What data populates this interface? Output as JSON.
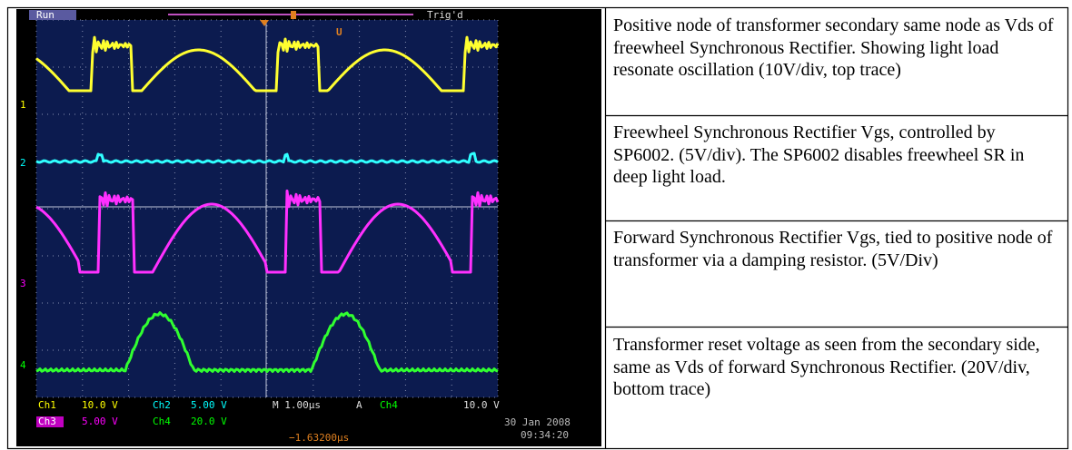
{
  "scope": {
    "status": "Run",
    "trigger": "Trig'd",
    "marker": "U",
    "channel_markers": [
      "1",
      "2",
      "3",
      "4"
    ],
    "readouts": [
      "Ch1",
      "10.0 V",
      "Ch2",
      "5.00 V",
      "M 1.00µs",
      "A",
      "Ch4",
      "10.0 V",
      "Ch3",
      "5.00 V",
      "Ch4",
      "20.0 V",
      "30 Jan 2008",
      "09:34:20",
      "−1.63200µs"
    ]
  },
  "table": {
    "rows": [
      "Positive node of transformer secondary same node as Vds of freewheel Synchronous Rectifier. Showing light load resonate oscillation (10V/div, top trace)",
      "Freewheel Synchronous Rectifier Vgs, controlled by SP6002. (5V/div). The SP6002 disables freewheel SR in deep light load.",
      "Forward Synchronous Rectifier Vgs, tied to positive node of transformer via a damping resistor. (5V/Div)",
      "Transformer reset voltage as seen from the secondary side, same as Vds of forward Synchronous Rectifier.  (20V/div, bottom trace)"
    ]
  }
}
